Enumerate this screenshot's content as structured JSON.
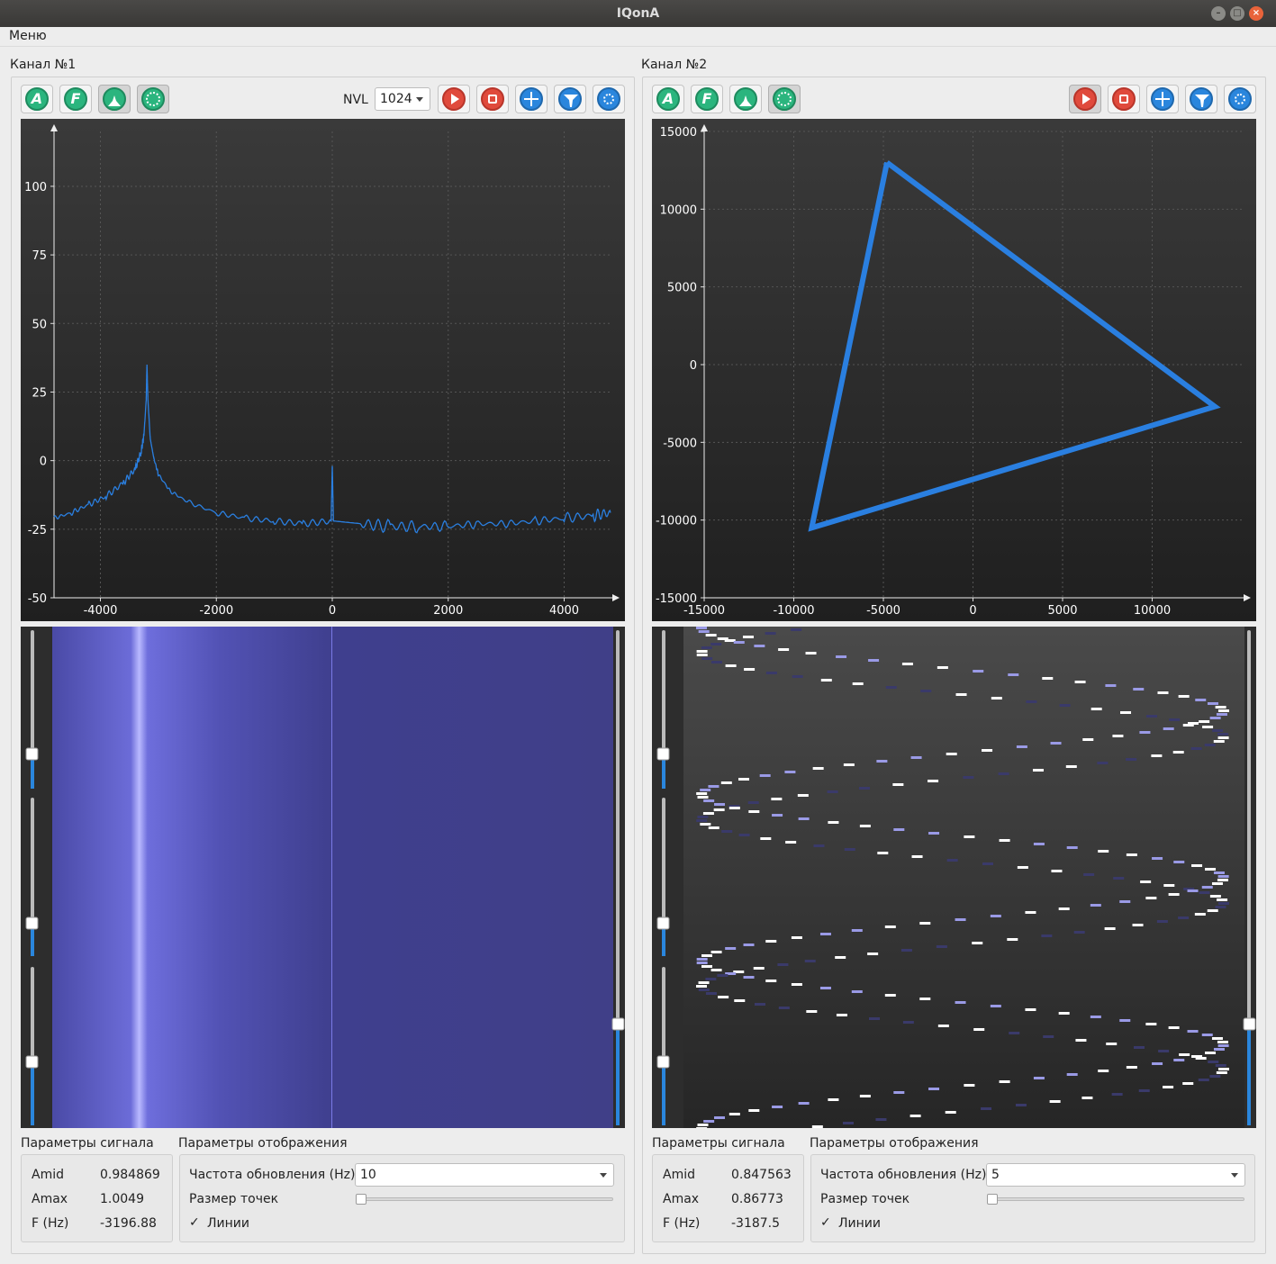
{
  "window": {
    "title": "IQonA"
  },
  "menubar": {
    "menu_label": "Меню"
  },
  "channels": [
    {
      "title": "Канал №1",
      "toolbar": {
        "nvl_label": "NVL",
        "nvl_value": "1024"
      },
      "plot": {
        "y_ticks": [
          "100",
          "75",
          "50",
          "25",
          "0",
          "-25",
          "-50"
        ],
        "x_ticks": [
          "-4000",
          "-2000",
          "0",
          "2000",
          "4000"
        ]
      },
      "signal_params": {
        "heading": "Параметры сигнала",
        "rows": [
          {
            "name": "Amid",
            "value": "0.984869"
          },
          {
            "name": "Amax",
            "value": "1.0049"
          },
          {
            "name": "F (Hz)",
            "value": "-3196.88"
          }
        ]
      },
      "display_params": {
        "heading": "Параметры отображения",
        "refresh_label": "Частота обновления (Hz)",
        "refresh_value": "10",
        "point_size_label": "Размер точек",
        "lines_label": "Линии",
        "lines_checked": "✓"
      }
    },
    {
      "title": "Канал №2",
      "plot": {
        "y_ticks": [
          "15000",
          "10000",
          "5000",
          "0",
          "-5000",
          "-10000",
          "-15000"
        ],
        "x_ticks": [
          "-15000",
          "-10000",
          "-5000",
          "0",
          "5000",
          "10000"
        ]
      },
      "signal_params": {
        "heading": "Параметры сигнала",
        "rows": [
          {
            "name": "Amid",
            "value": "0.847563"
          },
          {
            "name": "Amax",
            "value": "0.86773"
          },
          {
            "name": "F (Hz)",
            "value": "-3187.5"
          }
        ]
      },
      "display_params": {
        "heading": "Параметры отображения",
        "refresh_label": "Частота обновления (Hz)",
        "refresh_value": "5",
        "point_size_label": "Размер точек",
        "lines_label": "Линии",
        "lines_checked": "✓"
      }
    }
  ],
  "chart_data": [
    {
      "type": "line",
      "title": "",
      "xlabel": "",
      "ylabel": "",
      "xlim": [
        -4800,
        4800
      ],
      "ylim": [
        -50,
        120
      ],
      "series": [
        {
          "x": [
            -4800,
            -4500,
            -4200,
            -3900,
            -3600,
            -3400,
            -3300,
            -3250,
            -3210,
            -3197,
            -3180,
            -3140,
            -3080,
            -3000,
            -2800,
            -2500,
            -2000,
            -1500,
            -1000,
            -500,
            -20,
            0,
            20,
            500,
            1000,
            1500,
            2000,
            2500,
            3000,
            3500,
            4000,
            4500,
            4800
          ],
          "y": [
            -21,
            -19,
            -16,
            -13,
            -8,
            -3,
            3,
            9,
            22,
            35,
            22,
            8,
            1,
            -5,
            -11,
            -15,
            -19,
            -21,
            -22,
            -23,
            -22,
            -2,
            -22,
            -23,
            -24,
            -24,
            -24,
            -23,
            -23,
            -22,
            -21,
            -20,
            -19
          ]
        }
      ],
      "colors": {
        "line": "#2a7fe0",
        "background": "#262626"
      }
    },
    {
      "type": "line",
      "title": "",
      "xlabel": "",
      "ylabel": "",
      "xlim": [
        -15000,
        15000
      ],
      "ylim": [
        -15000,
        15000
      ],
      "series": [
        {
          "x": [
            -4800,
            13500,
            -9000,
            -4800
          ],
          "y": [
            13000,
            -2700,
            -10500,
            13000
          ]
        }
      ],
      "colors": {
        "line": "#2a7fe0",
        "background": "#262626"
      }
    }
  ],
  "colors": {
    "accent": "#2a86dd",
    "green_icon": "#2bb57e",
    "red_icon": "#e04a3c",
    "waterfall": "#3d3b7a"
  }
}
